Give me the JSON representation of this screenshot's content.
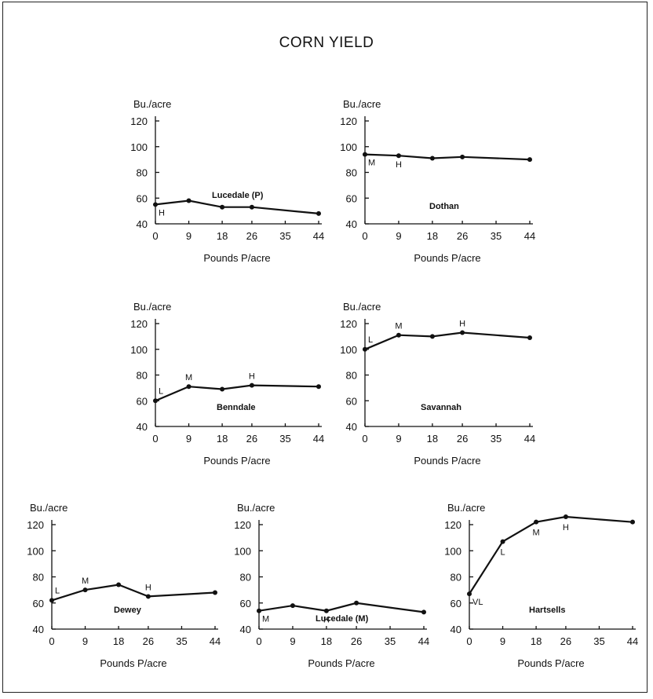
{
  "title": "CORN YIELD",
  "chart_data": [
    {
      "type": "line",
      "title": "Lucedale (P)",
      "ylabel": "Bu./acre",
      "xlabel": "Pounds P/acre",
      "ylim": [
        40,
        120
      ],
      "yticks": [
        "40",
        "60",
        "80",
        "100",
        "120"
      ],
      "xticks": [
        "0",
        "9",
        "18",
        "26",
        "35",
        "44"
      ],
      "x": [
        0,
        9,
        18,
        26,
        44
      ],
      "values": [
        55,
        58,
        53,
        53,
        48
      ],
      "point_labels": [
        {
          "x": 0,
          "text": "H"
        }
      ]
    },
    {
      "type": "line",
      "title": "Dothan",
      "ylabel": "Bu./acre",
      "xlabel": "Pounds P/acre",
      "ylim": [
        40,
        120
      ],
      "yticks": [
        "40",
        "60",
        "80",
        "100",
        "120"
      ],
      "xticks": [
        "0",
        "9",
        "18",
        "26",
        "35",
        "44"
      ],
      "x": [
        0,
        9,
        18,
        26,
        44
      ],
      "values": [
        94,
        93,
        91,
        92,
        90
      ],
      "point_labels": [
        {
          "x": 0,
          "text": "M"
        },
        {
          "x": 9,
          "text": "H"
        }
      ]
    },
    {
      "type": "line",
      "title": "Benndale",
      "ylabel": "Bu./acre",
      "xlabel": "Pounds P/acre",
      "ylim": [
        40,
        120
      ],
      "yticks": [
        "40",
        "60",
        "80",
        "100",
        "120"
      ],
      "xticks": [
        "0",
        "9",
        "18",
        "26",
        "35",
        "44"
      ],
      "x": [
        0,
        9,
        18,
        26,
        44
      ],
      "values": [
        60,
        71,
        69,
        72,
        71
      ],
      "point_labels": [
        {
          "x": 0,
          "text": "L"
        },
        {
          "x": 9,
          "text": "M"
        },
        {
          "x": 26,
          "text": "H"
        }
      ]
    },
    {
      "type": "line",
      "title": "Savannah",
      "ylabel": "Bu./acre",
      "xlabel": "Pounds P/acre",
      "ylim": [
        40,
        120
      ],
      "yticks": [
        "40",
        "60",
        "80",
        "100",
        "120"
      ],
      "xticks": [
        "0",
        "9",
        "18",
        "26",
        "35",
        "44"
      ],
      "x": [
        0,
        9,
        18,
        26,
        44
      ],
      "values": [
        100,
        111,
        110,
        113,
        109
      ],
      "point_labels": [
        {
          "x": 0,
          "text": "L"
        },
        {
          "x": 9,
          "text": "M"
        },
        {
          "x": 26,
          "text": "H"
        }
      ]
    },
    {
      "type": "line",
      "title": "Dewey",
      "ylabel": "Bu./acre",
      "xlabel": "Pounds P/acre",
      "ylim": [
        40,
        120
      ],
      "yticks": [
        "40",
        "60",
        "80",
        "100",
        "120"
      ],
      "xticks": [
        "0",
        "9",
        "18",
        "26",
        "35",
        "44"
      ],
      "x": [
        0,
        9,
        18,
        26,
        44
      ],
      "values": [
        62,
        70,
        74,
        65,
        68
      ],
      "point_labels": [
        {
          "x": 0,
          "text": "L"
        },
        {
          "x": 9,
          "text": "M"
        },
        {
          "x": 26,
          "text": "H"
        }
      ]
    },
    {
      "type": "line",
      "title": "Lucedale (M)",
      "ylabel": "Bu./acre",
      "xlabel": "Pounds P/acre",
      "ylim": [
        40,
        120
      ],
      "yticks": [
        "40",
        "60",
        "80",
        "100",
        "120"
      ],
      "xticks": [
        "0",
        "9",
        "18",
        "26",
        "35",
        "44"
      ],
      "x": [
        0,
        9,
        18,
        26,
        44
      ],
      "values": [
        54,
        58,
        54,
        60,
        53
      ],
      "point_labels": [
        {
          "x": 0,
          "text": "M"
        },
        {
          "x": 18,
          "text": "H"
        }
      ]
    },
    {
      "type": "line",
      "title": "Hartsells",
      "ylabel": "Bu./acre",
      "xlabel": "Pounds P/acre",
      "ylim": [
        40,
        120
      ],
      "yticks": [
        "40",
        "60",
        "80",
        "100",
        "120"
      ],
      "xticks": [
        "0",
        "9",
        "18",
        "26",
        "35",
        "44"
      ],
      "x": [
        0,
        9,
        18,
        26,
        44
      ],
      "values": [
        67,
        107,
        122,
        126,
        122
      ],
      "point_labels": [
        {
          "x": 0,
          "text": "VL"
        },
        {
          "x": 9,
          "text": "L"
        },
        {
          "x": 18,
          "text": "M"
        },
        {
          "x": 26,
          "text": "H"
        }
      ]
    }
  ]
}
